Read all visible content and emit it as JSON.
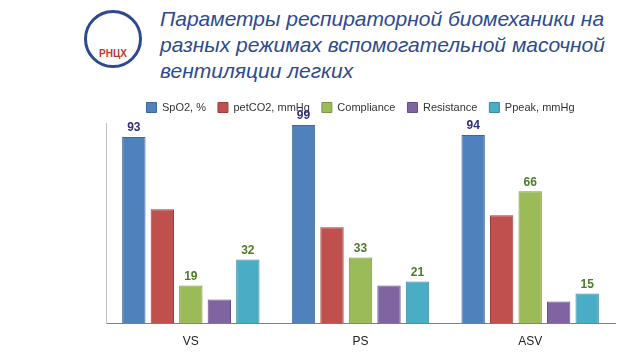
{
  "logo": "РНЦХ",
  "chart_data": {
    "type": "bar",
    "title": [
      "Параметры респираторной биомеханики на",
      "разных режимах вспомогательной масочной",
      "вентиляции легких"
    ],
    "categories": [
      "VS",
      "PS",
      "ASV"
    ],
    "series": [
      {
        "name": "SpO2, %",
        "color": "#4f81bd",
        "values": [
          93,
          99,
          94
        ],
        "data_labels": true
      },
      {
        "name": "petCO2, mmHg",
        "color": "#c0504d",
        "values": [
          57,
          48,
          54
        ]
      },
      {
        "name": "Compliance",
        "color": "#9bbb59",
        "values": [
          19,
          33,
          66
        ],
        "data_labels": true
      },
      {
        "name": "Resistance",
        "color": "#8064a2",
        "values": [
          12,
          19,
          11
        ]
      },
      {
        "name": "Ppeak, mmHg",
        "color": "#4bacc6",
        "values": [
          32,
          21,
          15
        ],
        "data_labels": true
      }
    ],
    "ylim": [
      0,
      100
    ],
    "grid": false,
    "legend": "top",
    "tick_labels": "x"
  }
}
